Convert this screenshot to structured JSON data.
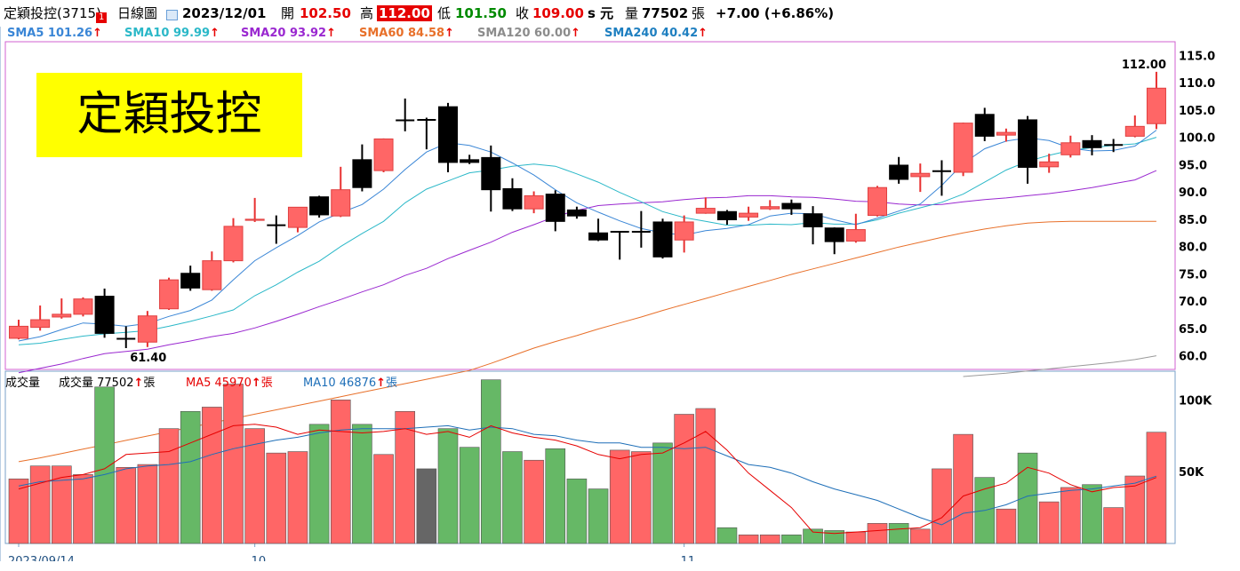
{
  "header": {
    "stock_name": "定穎投控(3715)",
    "badge": "1",
    "chart_label": "日線圖",
    "date": "2023/12/01",
    "open_label": "開",
    "open_value": "102.50",
    "high_label": "高",
    "high_value": "112.00",
    "low_label": "低",
    "low_value": "101.50",
    "close_label": "收",
    "close_value": "109.00",
    "unit": "s 元",
    "volume_label": "量",
    "volume_value": "77502",
    "volume_unit": "張",
    "change": "+7.00 (+6.86%)"
  },
  "sma_legend": [
    {
      "label": "SMA5 101.26",
      "color": "#3a86d6"
    },
    {
      "label": "SMA10 99.99",
      "color": "#2bb8c8"
    },
    {
      "label": "SMA20 93.92",
      "color": "#9a28d0"
    },
    {
      "label": "SMA60 84.58",
      "color": "#e8702a"
    },
    {
      "label": "SMA120 60.00",
      "color": "#8c8c8c"
    },
    {
      "label": "SMA240 40.42",
      "color": "#1e7fc0"
    }
  ],
  "arrow": "↑",
  "title_overlay": "定穎投控",
  "price_axis": [
    "115.0",
    "110.0",
    "105.0",
    "100.0",
    "95.0",
    "90.0",
    "85.0",
    "80.0",
    "75.0",
    "70.0",
    "65.0",
    "60.0"
  ],
  "annotations": {
    "high": "112.00",
    "low": "61.40"
  },
  "volume_legend": {
    "name": "成交量",
    "volume": "成交量 77502",
    "volume_unit": "張",
    "ma5": "MA5 45970",
    "ma5_unit": "張",
    "ma10": "MA10 46876",
    "ma10_unit": "張"
  },
  "volume_axis": [
    "100K",
    "50K"
  ],
  "x_axis": [
    "2023/09/14",
    "10",
    "11"
  ],
  "colors": {
    "up": "#ff6666",
    "down": "#000000",
    "vol_up": "#ff6666",
    "vol_down": "#66b866",
    "vol_flat": "#666666",
    "sma5": "#3a86d6",
    "sma10": "#2bb8c8",
    "sma20": "#9a28d0",
    "sma60": "#e8702a",
    "sma120": "#9a9a9a",
    "vma5": "#e60000",
    "vma10": "#1e6fb8",
    "frame": "#d060d0"
  },
  "chart_data": {
    "type": "candlestick",
    "ylim": [
      57.5,
      117.5
    ],
    "volume_ylim": [
      0,
      120000
    ],
    "x_tick_indices": {
      "2023/09/14": 0,
      "10": 11,
      "11": 31
    },
    "candles": [
      {
        "o": 63.2,
        "h": 66.6,
        "l": 63.0,
        "c": 65.4
      },
      {
        "o": 65.2,
        "h": 69.2,
        "l": 64.6,
        "c": 66.6
      },
      {
        "o": 67.1,
        "h": 70.5,
        "l": 66.8,
        "c": 67.6
      },
      {
        "o": 67.6,
        "h": 70.7,
        "l": 67.2,
        "c": 70.4
      },
      {
        "o": 70.9,
        "h": 72.3,
        "l": 63.3,
        "c": 64.1
      },
      {
        "o": 63.1,
        "h": 65.4,
        "l": 61.4,
        "c": 63.1
      },
      {
        "o": 62.5,
        "h": 68.2,
        "l": 61.6,
        "c": 67.3
      },
      {
        "o": 68.6,
        "h": 74.3,
        "l": 68.4,
        "c": 73.9
      },
      {
        "o": 75.1,
        "h": 76.5,
        "l": 71.9,
        "c": 72.4
      },
      {
        "o": 72.1,
        "h": 79.1,
        "l": 71.9,
        "c": 77.4
      },
      {
        "o": 77.4,
        "h": 85.2,
        "l": 77.1,
        "c": 83.7
      },
      {
        "o": 84.8,
        "h": 88.9,
        "l": 84.5,
        "c": 85.0
      },
      {
        "o": 83.9,
        "h": 85.7,
        "l": 80.5,
        "c": 83.9
      },
      {
        "o": 83.5,
        "h": 87.2,
        "l": 82.6,
        "c": 87.2
      },
      {
        "o": 89.1,
        "h": 89.3,
        "l": 85.3,
        "c": 85.8
      },
      {
        "o": 85.6,
        "h": 94.6,
        "l": 85.4,
        "c": 90.4
      },
      {
        "o": 95.9,
        "h": 98.7,
        "l": 90.1,
        "c": 90.8
      },
      {
        "o": 93.9,
        "h": 99.8,
        "l": 93.6,
        "c": 99.7
      },
      {
        "o": 103.1,
        "h": 107.1,
        "l": 101.1,
        "c": 103.1
      },
      {
        "o": 103.2,
        "h": 103.6,
        "l": 97.8,
        "c": 103.2
      },
      {
        "o": 105.6,
        "h": 106.3,
        "l": 93.6,
        "c": 95.4
      },
      {
        "o": 95.9,
        "h": 96.8,
        "l": 95.1,
        "c": 95.4
      },
      {
        "o": 96.3,
        "h": 98.5,
        "l": 86.4,
        "c": 90.4
      },
      {
        "o": 90.6,
        "h": 92.5,
        "l": 86.5,
        "c": 86.9
      },
      {
        "o": 86.9,
        "h": 90.1,
        "l": 86.1,
        "c": 89.3
      },
      {
        "o": 89.6,
        "h": 90.3,
        "l": 82.8,
        "c": 84.6
      },
      {
        "o": 86.7,
        "h": 87.3,
        "l": 85.1,
        "c": 85.6
      },
      {
        "o": 82.5,
        "h": 85.1,
        "l": 81.0,
        "c": 81.2
      },
      {
        "o": 82.7,
        "h": 82.8,
        "l": 77.6,
        "c": 82.7
      },
      {
        "o": 82.7,
        "h": 86.5,
        "l": 79.8,
        "c": 82.7
      },
      {
        "o": 84.5,
        "h": 85.1,
        "l": 77.8,
        "c": 78.1
      },
      {
        "o": 81.2,
        "h": 85.7,
        "l": 78.9,
        "c": 84.5
      },
      {
        "o": 86.1,
        "h": 89.0,
        "l": 86.0,
        "c": 87.0
      },
      {
        "o": 86.4,
        "h": 86.7,
        "l": 84.0,
        "c": 84.9
      },
      {
        "o": 85.4,
        "h": 87.3,
        "l": 84.7,
        "c": 86.1
      },
      {
        "o": 86.9,
        "h": 88.5,
        "l": 86.7,
        "c": 87.3
      },
      {
        "o": 87.9,
        "h": 88.6,
        "l": 85.8,
        "c": 86.9
      },
      {
        "o": 86.0,
        "h": 87.4,
        "l": 80.4,
        "c": 83.6
      },
      {
        "o": 83.4,
        "h": 83.5,
        "l": 78.6,
        "c": 80.9
      },
      {
        "o": 81.0,
        "h": 86.0,
        "l": 80.7,
        "c": 83.1
      },
      {
        "o": 85.7,
        "h": 91.1,
        "l": 85.5,
        "c": 90.8
      },
      {
        "o": 94.9,
        "h": 96.4,
        "l": 91.5,
        "c": 92.3
      },
      {
        "o": 92.8,
        "h": 95.2,
        "l": 90.0,
        "c": 93.4
      },
      {
        "o": 93.8,
        "h": 95.8,
        "l": 89.3,
        "c": 93.8
      },
      {
        "o": 93.6,
        "h": 102.7,
        "l": 92.9,
        "c": 102.6
      },
      {
        "o": 104.2,
        "h": 105.4,
        "l": 99.3,
        "c": 100.2
      },
      {
        "o": 100.4,
        "h": 101.6,
        "l": 99.2,
        "c": 100.9
      },
      {
        "o": 103.2,
        "h": 103.9,
        "l": 91.5,
        "c": 94.5
      },
      {
        "o": 94.6,
        "h": 97.0,
        "l": 93.5,
        "c": 95.5
      },
      {
        "o": 96.8,
        "h": 100.3,
        "l": 96.3,
        "c": 99.0
      },
      {
        "o": 99.4,
        "h": 100.4,
        "l": 96.7,
        "c": 98.1
      },
      {
        "o": 98.6,
        "h": 99.7,
        "l": 97.3,
        "c": 98.6
      },
      {
        "o": 100.2,
        "h": 104.0,
        "l": 100.0,
        "c": 102.0
      },
      {
        "o": 102.5,
        "h": 112.0,
        "l": 101.5,
        "c": 109.0
      }
    ],
    "volume": [
      45000,
      54000,
      54000,
      48000,
      109000,
      53000,
      55000,
      80000,
      92000,
      95000,
      111000,
      80000,
      63000,
      64000,
      83000,
      100000,
      83000,
      62000,
      92000,
      52000,
      80000,
      67000,
      114000,
      64000,
      58000,
      66000,
      45000,
      38000,
      65000,
      64000,
      70000,
      90000,
      94000,
      11000,
      6000,
      6000,
      6000,
      10000,
      9000,
      8000,
      14000,
      14000,
      10000,
      52000,
      76000,
      46000,
      24000,
      63000,
      29000,
      39000,
      41000,
      25000,
      47000,
      77502
    ],
    "sma5": [
      62.7,
      63.5,
      64.8,
      66.0,
      65.8,
      65.4,
      65.9,
      67.2,
      68.3,
      70.2,
      73.9,
      77.4,
      79.8,
      82.0,
      84.5,
      86.2,
      87.7,
      90.5,
      94.1,
      97.3,
      99.0,
      98.5,
      97.3,
      95.3,
      93.1,
      90.4,
      88.0,
      86.3,
      84.7,
      83.3,
      82.5,
      82.1,
      82.9,
      83.3,
      84.0,
      85.6,
      86.1,
      86.0,
      84.9,
      84.0,
      85.2,
      86.5,
      87.8,
      91.2,
      95.2,
      97.9,
      99.3,
      99.9,
      99.4,
      98.0,
      97.5,
      97.6,
      98.4,
      101.3
    ],
    "sma10": [
      62.0,
      62.3,
      63.0,
      63.6,
      64.0,
      64.3,
      64.6,
      65.4,
      66.3,
      67.3,
      68.4,
      71.0,
      73.0,
      75.3,
      77.3,
      80.0,
      82.4,
      84.6,
      88.0,
      90.5,
      92.0,
      93.5,
      94.0,
      94.7,
      95.1,
      94.7,
      93.3,
      91.8,
      89.9,
      88.2,
      86.4,
      85.3,
      84.6,
      83.9,
      83.9,
      84.1,
      84.0,
      84.4,
      84.1,
      84.1,
      84.9,
      86.1,
      87.1,
      88.1,
      89.6,
      91.8,
      94.0,
      95.6,
      96.7,
      97.6,
      98.1,
      98.5,
      98.8,
      100.0
    ],
    "sma20": [
      56.9,
      57.7,
      58.5,
      59.5,
      60.4,
      60.8,
      61.2,
      62.0,
      62.7,
      63.5,
      64.1,
      65.1,
      66.3,
      67.6,
      69.0,
      70.3,
      71.7,
      73.0,
      74.7,
      76.0,
      77.8,
      79.3,
      80.8,
      82.6,
      84.0,
      85.5,
      86.6,
      87.5,
      87.8,
      88.0,
      88.2,
      88.6,
      88.9,
      89.0,
      89.3,
      89.3,
      89.1,
      89.0,
      88.7,
      88.3,
      88.2,
      87.8,
      87.6,
      87.7,
      88.2,
      88.6,
      88.9,
      89.3,
      89.7,
      90.2,
      90.8,
      91.5,
      92.2,
      93.9
    ],
    "sma60": [
      40.6,
      41.3,
      42.1,
      42.9,
      43.7,
      44.5,
      45.3,
      46.1,
      46.9,
      47.7,
      48.5,
      49.3,
      50.1,
      50.9,
      51.7,
      52.5,
      53.3,
      54.1,
      54.9,
      55.7,
      56.5,
      57.3,
      58.6,
      60.0,
      61.4,
      62.6,
      63.7,
      64.9,
      66.0,
      67.1,
      68.3,
      69.4,
      70.5,
      71.6,
      72.7,
      73.8,
      74.9,
      75.9,
      76.9,
      77.9,
      78.9,
      79.9,
      80.8,
      81.7,
      82.5,
      83.2,
      83.8,
      84.3,
      84.5,
      84.6,
      84.6,
      84.6,
      84.6,
      84.6
    ],
    "sma120": [
      null,
      null,
      null,
      null,
      null,
      null,
      null,
      null,
      null,
      null,
      null,
      null,
      null,
      null,
      null,
      null,
      null,
      null,
      null,
      null,
      null,
      null,
      null,
      null,
      null,
      null,
      null,
      null,
      null,
      null,
      null,
      null,
      null,
      null,
      null,
      null,
      null,
      null,
      null,
      null,
      null,
      null,
      null,
      null,
      56.2,
      56.5,
      56.8,
      57.2,
      57.6,
      58.0,
      58.4,
      58.8,
      59.3,
      60.0
    ],
    "vma5": [
      38000,
      42000,
      46000,
      48000,
      52000,
      62000,
      63000,
      64000,
      70000,
      76000,
      82000,
      83000,
      81000,
      76000,
      79000,
      78000,
      77000,
      78000,
      80000,
      76000,
      78000,
      74000,
      82000,
      77000,
      74000,
      72000,
      68000,
      62000,
      59000,
      62000,
      63000,
      70000,
      78000,
      65000,
      49000,
      37000,
      25000,
      8000,
      7000,
      8000,
      9000,
      10000,
      11000,
      18000,
      33000,
      38000,
      42000,
      53000,
      49000,
      41000,
      36000,
      39000,
      40000,
      45970
    ],
    "vma10": [
      40000,
      43000,
      44000,
      45000,
      48000,
      52000,
      54000,
      55000,
      57000,
      62000,
      66000,
      69000,
      72000,
      74000,
      77000,
      79000,
      80000,
      80000,
      80000,
      81000,
      82000,
      79000,
      81000,
      80000,
      76000,
      75000,
      72000,
      70000,
      70000,
      67000,
      67000,
      66000,
      67000,
      61000,
      55000,
      53000,
      49000,
      43000,
      38000,
      34000,
      30000,
      24000,
      18000,
      13000,
      21000,
      23000,
      27000,
      33000,
      35000,
      37000,
      38000,
      40000,
      42000,
      46876
    ]
  }
}
